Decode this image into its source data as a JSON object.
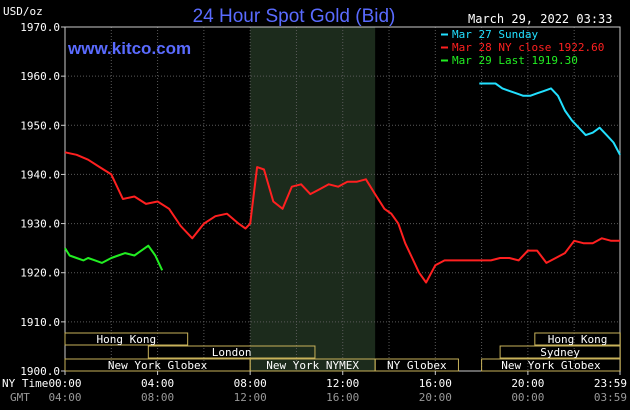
{
  "header": {
    "unit": "USD/oz",
    "title": "24 Hour Spot Gold (Bid)",
    "date": "March 29, 2022 03:33",
    "site": "www.kitco.com"
  },
  "legend": [
    {
      "text": "Mar 27 Sunday",
      "color": "#22e0ff"
    },
    {
      "text": "Mar 28 NY close 1922.60",
      "color": "#ff2020"
    },
    {
      "text": "Mar 29 Last 1919.30",
      "color": "#22ee22"
    }
  ],
  "axis": {
    "ny_time_label": "NY Time",
    "gmt_label": "GMT",
    "ny_ticks": [
      "00:00",
      "04:00",
      "08:00",
      "12:00",
      "16:00",
      "20:00",
      "23:59"
    ],
    "gmt_ticks": [
      "04:00",
      "08:00",
      "12:00",
      "16:00",
      "20:00",
      "00:00",
      "03:59"
    ],
    "y_ticks": [
      "1970.0",
      "1960.0",
      "1950.0",
      "1940.0",
      "1930.0",
      "1920.0",
      "1910.0",
      "1900.0"
    ]
  },
  "sessions": [
    {
      "label": "Hong Kong",
      "start": 0,
      "end": 5.3
    },
    {
      "label": "London",
      "start": 3.6,
      "end": 10.8
    },
    {
      "label": "New York Globex",
      "start": 0,
      "end": 8.0
    },
    {
      "label": "New York NYMEX",
      "start": 8.0,
      "end": 13.4
    },
    {
      "label": "NY Globex",
      "start": 13.4,
      "end": 17.0
    },
    {
      "label": "Hong Kong",
      "start": 20.3,
      "end": 23.99
    },
    {
      "label": "Sydney",
      "start": 18.8,
      "end": 23.99
    },
    {
      "label": "New York Globex",
      "start": 18.0,
      "end": 23.99
    }
  ],
  "chart_data": {
    "type": "line",
    "title": "24 Hour Spot Gold (Bid)",
    "ylabel": "USD/oz",
    "xlabel": "NY Time",
    "ylim": [
      1900,
      1970
    ],
    "xlim": [
      0,
      23.98
    ],
    "shaded_region": [
      8.0,
      13.4
    ],
    "grid": true,
    "legend_position": "top-right",
    "series": [
      {
        "name": "Mar 27 Sunday",
        "color": "#22e0ff",
        "x": [
          17.9,
          18.3,
          18.6,
          18.9,
          19.2,
          19.5,
          19.8,
          20.1,
          20.4,
          20.7,
          21.0,
          21.3,
          21.6,
          21.9,
          22.2,
          22.5,
          22.8,
          23.1,
          23.4,
          23.7,
          23.98
        ],
        "y": [
          1958.5,
          1958.5,
          1958.5,
          1957.5,
          1957.0,
          1956.5,
          1956.0,
          1956.0,
          1956.5,
          1957.0,
          1957.5,
          1956.0,
          1953.0,
          1951.0,
          1949.5,
          1948.0,
          1948.5,
          1949.5,
          1948.0,
          1946.5,
          1944.0
        ]
      },
      {
        "name": "Mar 28 NY close 1922.60",
        "color": "#ff2020",
        "x": [
          0,
          0.5,
          1.0,
          1.5,
          2.0,
          2.5,
          3.0,
          3.5,
          4.0,
          4.5,
          5.0,
          5.5,
          6.0,
          6.5,
          7.0,
          7.5,
          7.8,
          8.0,
          8.3,
          8.6,
          9.0,
          9.4,
          9.8,
          10.2,
          10.6,
          11.0,
          11.4,
          11.8,
          12.2,
          12.6,
          13.0,
          13.4,
          13.8,
          14.1,
          14.4,
          14.7,
          15.0,
          15.3,
          15.6,
          16.0,
          16.4,
          16.8,
          17.2,
          17.6,
          18.0,
          18.4,
          18.8,
          19.2,
          19.6,
          20.0,
          20.4,
          20.8,
          21.2,
          21.6,
          22.0,
          22.4,
          22.8,
          23.2,
          23.6,
          23.98
        ],
        "y": [
          1944.5,
          1944.0,
          1943.0,
          1941.5,
          1940.0,
          1935.0,
          1935.5,
          1934.0,
          1934.5,
          1933.0,
          1929.5,
          1927.0,
          1930.0,
          1931.5,
          1932.0,
          1930.0,
          1929.0,
          1930.0,
          1941.5,
          1941.0,
          1934.5,
          1933.0,
          1937.5,
          1938.0,
          1936.0,
          1937.0,
          1938.0,
          1937.5,
          1938.5,
          1938.5,
          1939.0,
          1936.0,
          1933.0,
          1932.0,
          1930.0,
          1926.0,
          1923.0,
          1920.0,
          1918.0,
          1921.5,
          1922.5,
          1922.5,
          1922.5,
          1922.5,
          1922.5,
          1922.5,
          1923.0,
          1923.0,
          1922.5,
          1924.5,
          1924.5,
          1922.0,
          1923.0,
          1924.0,
          1926.5,
          1926.0,
          1926.0,
          1927.0,
          1926.5,
          1926.5
        ]
      },
      {
        "name": "Mar 29 Last 1919.30",
        "color": "#22ee22",
        "x": [
          0,
          0.2,
          0.5,
          0.8,
          1.0,
          1.3,
          1.6,
          2.0,
          2.3,
          2.6,
          3.0,
          3.3,
          3.6,
          3.9,
          4.2
        ],
        "y": [
          1925.0,
          1923.5,
          1923.0,
          1922.5,
          1923.0,
          1922.5,
          1922.0,
          1923.0,
          1923.5,
          1924.0,
          1923.5,
          1924.5,
          1925.5,
          1923.5,
          1920.5
        ]
      }
    ]
  }
}
